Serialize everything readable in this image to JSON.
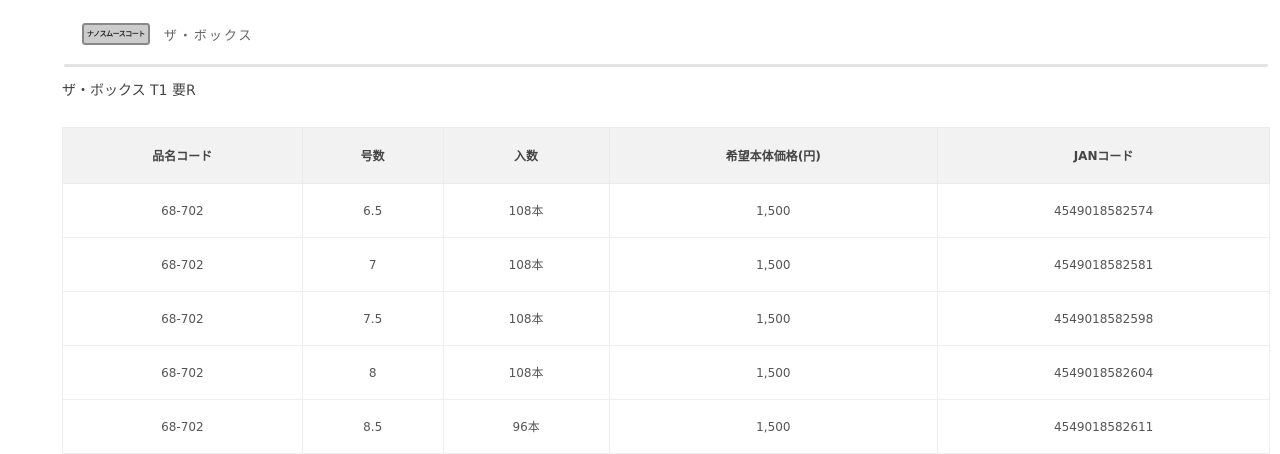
{
  "breadcrumb": {
    "badge": "ナノスムースコート",
    "current": "ザ・ボックス"
  },
  "title": "ザ・ボックス T1 要R",
  "table": {
    "headers": [
      "品名コード",
      "号数",
      "入数",
      "希望本体価格(円)",
      "JANコード"
    ],
    "rows": [
      [
        "68-702",
        "6.5",
        "108本",
        "1,500",
        "4549018582574"
      ],
      [
        "68-702",
        "7",
        "108本",
        "1,500",
        "4549018582581"
      ],
      [
        "68-702",
        "7.5",
        "108本",
        "1,500",
        "4549018582598"
      ],
      [
        "68-702",
        "8",
        "108本",
        "1,500",
        "4549018582604"
      ],
      [
        "68-702",
        "8.5",
        "96本",
        "1,500",
        "4549018582611"
      ]
    ]
  }
}
